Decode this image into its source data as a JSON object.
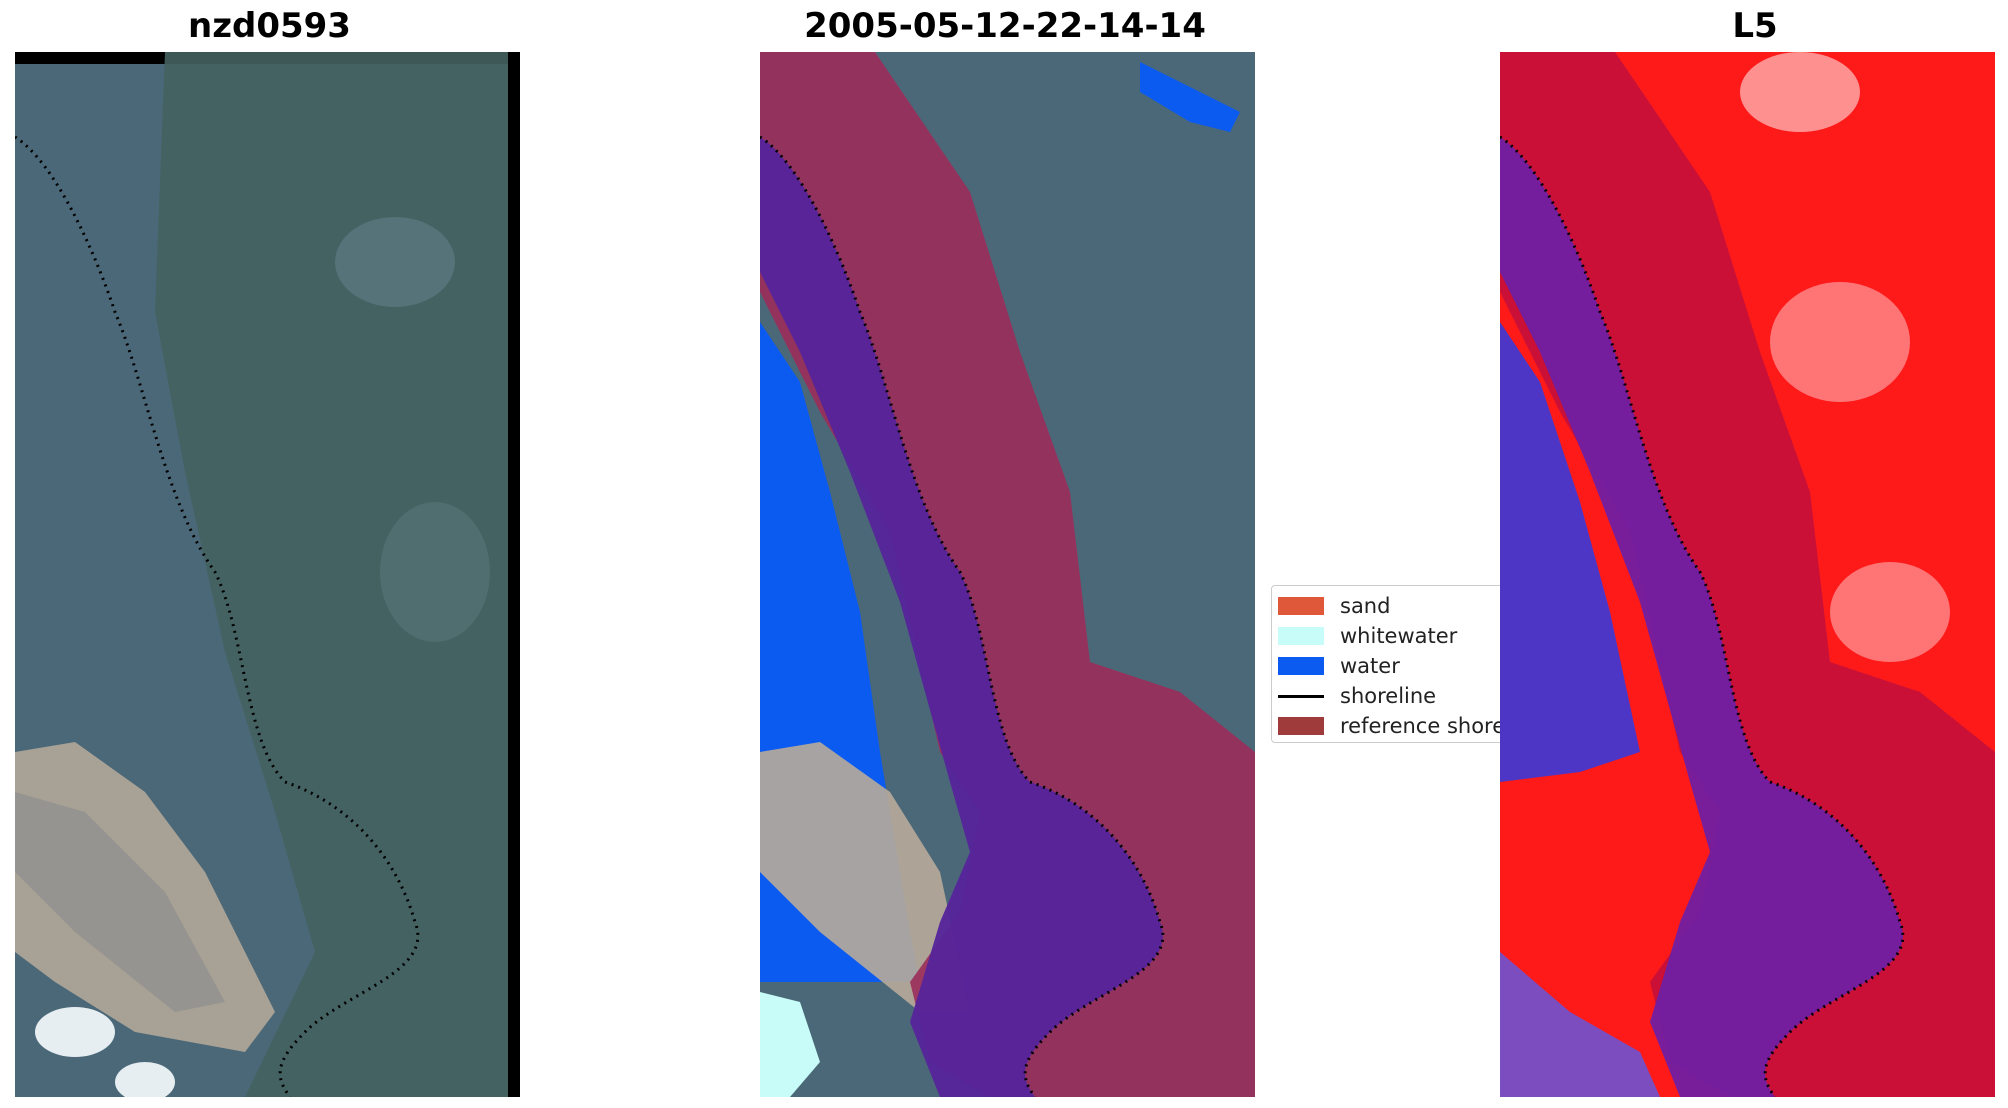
{
  "panels": [
    {
      "title": "nzd0593"
    },
    {
      "title": "2005-05-12-22-14-14"
    },
    {
      "title": "L5"
    }
  ],
  "legend": {
    "items": [
      {
        "label": "sand",
        "color": "#e0583a",
        "kind": "patch"
      },
      {
        "label": "whitewater",
        "color": "#c8fcf8",
        "kind": "patch"
      },
      {
        "label": "water",
        "color": "#0b5bf0",
        "kind": "patch"
      },
      {
        "label": "shoreline",
        "color": "#000000",
        "kind": "line"
      },
      {
        "label": "reference shoreline buffer",
        "color": "#a03b3b",
        "kind": "patch"
      }
    ]
  },
  "colors": {
    "land": "#4a6675",
    "vegetation": "#3f5d5c",
    "sand_bright": "#b8ab9a",
    "buffer": "#9b2d5a",
    "water_overlay": "#55249a",
    "index_high": "#ff1a1a",
    "index_low": "#3a3ad8"
  }
}
